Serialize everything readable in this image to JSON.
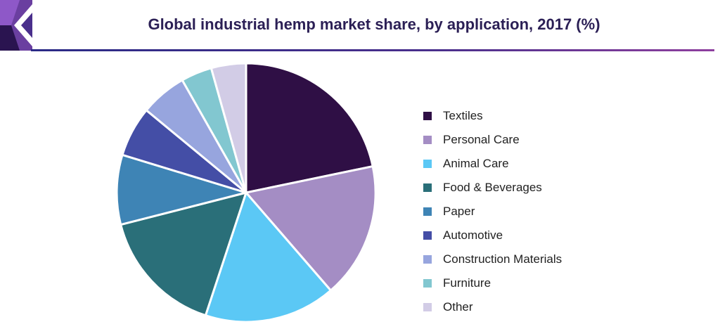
{
  "header": {
    "title": "Global industrial hemp market share, by application, 2017 (%)"
  },
  "chart_data": {
    "type": "pie",
    "title": "Global industrial hemp market share, by application, 2017 (%)",
    "start_angle_deg": 0,
    "direction": "clockwise",
    "legend_position": "right",
    "slices": [
      {
        "label": "Textiles",
        "value": 22.5,
        "color": "#2f0f45"
      },
      {
        "label": "Personal Care",
        "value": 17.5,
        "color": "#a48dc4"
      },
      {
        "label": "Animal Care",
        "value": 17.0,
        "color": "#5bc8f5"
      },
      {
        "label": "Food & Beverages",
        "value": 16.5,
        "color": "#2a6f79"
      },
      {
        "label": "Paper",
        "value": 9.0,
        "color": "#3e84b5"
      },
      {
        "label": "Automotive",
        "value": 6.5,
        "color": "#444ea6"
      },
      {
        "label": "Construction Materials",
        "value": 6.0,
        "color": "#97a5de"
      },
      {
        "label": "Furniture",
        "value": 4.0,
        "color": "#82c7d0"
      },
      {
        "label": "Other",
        "value": 4.5,
        "color": "#d2cce6"
      }
    ]
  }
}
